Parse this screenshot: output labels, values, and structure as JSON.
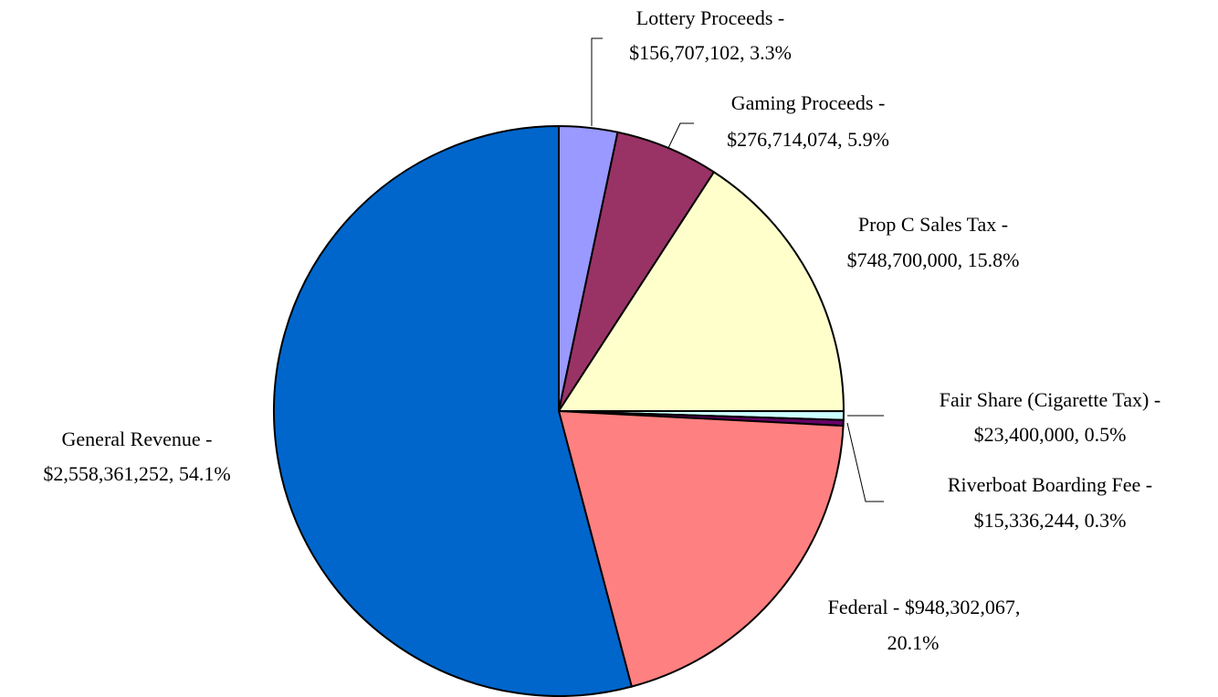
{
  "chart_data": {
    "type": "pie",
    "values": [
      156707102,
      276714074,
      748700000,
      23400000,
      15336244,
      948302067,
      2558361252
    ],
    "value_labels": [
      [
        "Lottery Proceeds -",
        "$156,707,102, 3.3%"
      ],
      [
        "Gaming Proceeds -",
        "$276,714,074, 5.9%"
      ],
      [
        "Prop C Sales Tax -",
        "$748,700,000, 15.8%"
      ],
      [
        "Fair Share (Cigarette Tax) -",
        "$23,400,000, 0.5%"
      ],
      [
        "Riverboat Boarding Fee -",
        "$15,336,244, 0.3%"
      ],
      [
        "Federal - $948,302,067,",
        "20.1%"
      ],
      [
        "General Revenue -",
        "$2,558,361,252, 54.1%"
      ]
    ],
    "colors": [
      "#9999ff",
      "#993366",
      "#ffffcc",
      "#ccffff",
      "#660066",
      "#ff8080",
      "#0066cc"
    ]
  }
}
